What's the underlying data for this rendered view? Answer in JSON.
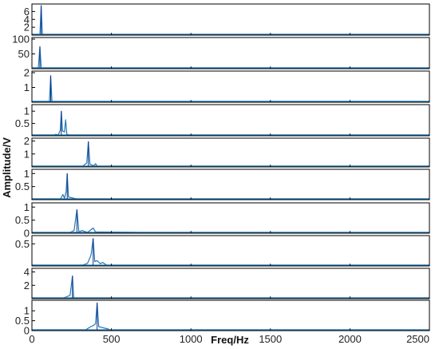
{
  "chart_data": {
    "type": "line",
    "xlabel": "Freq/Hz",
    "ylabel": "Amplitude/V",
    "xlim": [
      0,
      2500
    ],
    "x_ticks": [
      "0",
      "500",
      "1000",
      "1500",
      "2000",
      "2500"
    ],
    "colors": {
      "trace": "#1f77b4",
      "trace_dark": "#1b2f8a",
      "frame": "#000000"
    },
    "panels": [
      {
        "ylim": [
          0,
          7.5
        ],
        "yticks": [
          {
            "v": 2,
            "label": "2"
          },
          {
            "v": 4,
            "label": "4"
          },
          {
            "v": 6,
            "label": "6"
          }
        ],
        "peaks": [
          [
            50,
            0
          ],
          [
            58,
            7.5
          ],
          [
            66,
            0
          ]
        ]
      },
      {
        "ylim": [
          0,
          100
        ],
        "yticks": [
          {
            "v": 50,
            "label": "50"
          },
          {
            "v": 100,
            "label": "100"
          }
        ],
        "peaks": [
          [
            40,
            0
          ],
          [
            50,
            75
          ],
          [
            58,
            0
          ]
        ]
      },
      {
        "ylim": [
          0,
          2
        ],
        "yticks": [
          {
            "v": 1,
            "label": "1"
          },
          {
            "v": 2,
            "label": "2"
          }
        ],
        "peaks": [
          [
            110,
            0
          ],
          [
            118,
            1.8
          ],
          [
            126,
            0
          ],
          [
            220,
            0.03
          ],
          [
            230,
            0
          ]
        ]
      },
      {
        "ylim": [
          0,
          1.2
        ],
        "yticks": [
          {
            "v": 0.5,
            "label": "0.5"
          },
          {
            "v": 1,
            "label": "1"
          }
        ],
        "peaks": [
          [
            140,
            0
          ],
          [
            150,
            0.06
          ],
          [
            165,
            0.02
          ],
          [
            178,
            0.22
          ],
          [
            185,
            1.0
          ],
          [
            192,
            0.2
          ],
          [
            205,
            0.15
          ],
          [
            212,
            0.65
          ],
          [
            220,
            0.05
          ],
          [
            240,
            0
          ]
        ]
      },
      {
        "ylim": [
          0,
          2.1
        ],
        "yticks": [
          {
            "v": 1,
            "label": "1"
          },
          {
            "v": 2,
            "label": "2"
          }
        ],
        "peaks": [
          [
            300,
            0
          ],
          [
            320,
            0.05
          ],
          [
            345,
            0.3
          ],
          [
            355,
            1.95
          ],
          [
            365,
            0.2
          ],
          [
            390,
            0.1
          ],
          [
            400,
            0.25
          ],
          [
            410,
            0
          ]
        ]
      },
      {
        "ylim": [
          0,
          1.1
        ],
        "yticks": [
          {
            "v": 0.5,
            "label": "0.5"
          },
          {
            "v": 1,
            "label": "1"
          }
        ],
        "peaks": [
          [
            180,
            0
          ],
          [
            195,
            0.2
          ],
          [
            205,
            0.05
          ],
          [
            215,
            0.3
          ],
          [
            222,
            1.0
          ],
          [
            230,
            0.1
          ],
          [
            280,
            0.02
          ],
          [
            600,
            0
          ]
        ]
      },
      {
        "ylim": [
          0,
          1.1
        ],
        "yticks": [
          {
            "v": 0,
            "label": "0"
          },
          {
            "v": 0.5,
            "label": "0.5"
          },
          {
            "v": 1,
            "label": "1"
          }
        ],
        "peaks": [
          [
            220,
            0
          ],
          [
            240,
            0.03
          ],
          [
            265,
            0.1
          ],
          [
            283,
            0.9
          ],
          [
            295,
            0.05
          ],
          [
            315,
            0.1
          ],
          [
            350,
            0.03
          ],
          [
            385,
            0.2
          ],
          [
            400,
            0.05
          ],
          [
            700,
            0
          ]
        ]
      },
      {
        "ylim": [
          0,
          0.65
        ],
        "yticks": [
          {
            "v": 0.5,
            "label": "0.5"
          }
        ],
        "peaks": [
          [
            290,
            0
          ],
          [
            320,
            0.02
          ],
          [
            350,
            0.06
          ],
          [
            372,
            0.25
          ],
          [
            385,
            0.62
          ],
          [
            395,
            0.1
          ],
          [
            410,
            0.12
          ],
          [
            430,
            0.05
          ],
          [
            445,
            0.08
          ],
          [
            470,
            0
          ]
        ]
      },
      {
        "ylim": [
          0,
          4.3
        ],
        "yticks": [
          {
            "v": 2,
            "label": "2"
          },
          {
            "v": 4,
            "label": "4"
          }
        ],
        "peaks": [
          [
            200,
            0
          ],
          [
            240,
            0.5
          ],
          [
            255,
            3.4
          ],
          [
            262,
            0.2
          ],
          [
            270,
            0.05
          ],
          [
            300,
            0
          ]
        ]
      },
      {
        "ylim": [
          0,
          1.45
        ],
        "yticks": [
          {
            "v": 0,
            "label": "0"
          },
          {
            "v": 0.5,
            "label": "0.5"
          },
          {
            "v": 1,
            "label": "1"
          }
        ],
        "peaks": [
          [
            290,
            0
          ],
          [
            340,
            0.05
          ],
          [
            370,
            0.2
          ],
          [
            385,
            0.25
          ],
          [
            400,
            0.35
          ],
          [
            410,
            1.4
          ],
          [
            420,
            0.2
          ],
          [
            480,
            0.08
          ],
          [
            490,
            0
          ]
        ]
      }
    ]
  }
}
